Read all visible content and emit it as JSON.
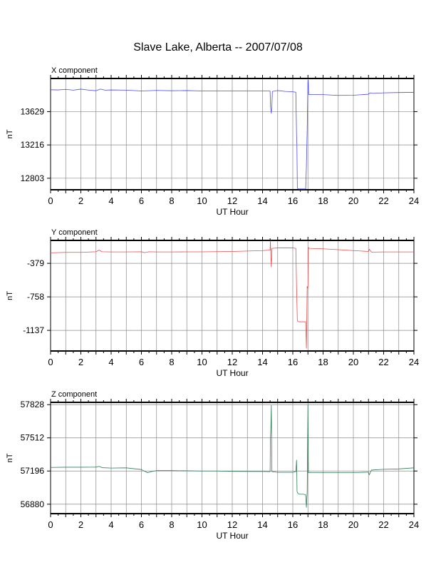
{
  "title": "Slave Lake, Alberta -- 2007/07/08",
  "colors": {
    "x": "#4a4aee",
    "y": "#ee4a4a",
    "z": "#2e7d55",
    "grid": "#8a8a8a",
    "axis": "#000000"
  },
  "chart_data": [
    {
      "type": "line",
      "panel_label": "X component",
      "xlabel": "UT Hour",
      "ylabel": "nT",
      "xlim": [
        0,
        24
      ],
      "ylim": [
        12660,
        14040
      ],
      "x_ticks": [
        0,
        2,
        4,
        6,
        8,
        10,
        12,
        14,
        16,
        18,
        20,
        22,
        24
      ],
      "y_ticks": [
        13629,
        13216,
        12803
      ],
      "grid": true,
      "series": [
        {
          "color": "#4a4aee",
          "x": [
            0,
            0.5,
            1,
            1.5,
            2,
            2.5,
            3,
            3.3,
            3.6,
            4,
            5,
            6,
            7,
            8,
            9,
            10,
            11,
            12,
            13,
            14,
            14.5,
            14.53,
            14.58,
            14.62,
            14.65,
            15,
            15.5,
            16,
            16.2,
            16.25,
            16.27,
            16.3,
            16.35,
            16.5,
            16.7,
            16.85,
            16.9,
            16.95,
            17.0,
            17.02,
            17.05,
            18,
            19,
            20,
            21,
            21.1,
            21.3,
            22,
            23,
            24
          ],
          "y": [
            13900,
            13898,
            13905,
            13895,
            13908,
            13896,
            13888,
            13908,
            13895,
            13898,
            13895,
            13885,
            13892,
            13888,
            13890,
            13885,
            13886,
            13886,
            13884,
            13884,
            13884,
            13690,
            13610,
            13720,
            13880,
            13890,
            13880,
            13875,
            13870,
            13320,
            13220,
            12680,
            12670,
            12670,
            12670,
            12670,
            12960,
            13400,
            14000,
            14020,
            13840,
            13840,
            13830,
            13832,
            13845,
            13862,
            13855,
            13862,
            13866,
            13868
          ]
        }
      ]
    },
    {
      "type": "line",
      "panel_label": "Y component",
      "xlabel": "UT Hour",
      "ylabel": "nT",
      "xlim": [
        0,
        24
      ],
      "ylim": [
        -1370,
        -120
      ],
      "x_ticks": [
        0,
        2,
        4,
        6,
        8,
        10,
        12,
        14,
        16,
        18,
        20,
        22,
        24
      ],
      "y_ticks": [
        -379,
        -758,
        -1137
      ],
      "grid": true,
      "series": [
        {
          "color": "#ee4a4a",
          "x": [
            0,
            1,
            2,
            3,
            3.2,
            3.4,
            4,
            5,
            6,
            6.2,
            6.5,
            7,
            8,
            9,
            10,
            11,
            12,
            13,
            14,
            14.5,
            14.52,
            14.55,
            14.58,
            14.62,
            15,
            16,
            16.2,
            16.25,
            16.3,
            16.4,
            16.7,
            16.85,
            16.9,
            16.95,
            17.0,
            17.03,
            17.1,
            18,
            19,
            20,
            21,
            21.05,
            21.2,
            22,
            23,
            24
          ],
          "y": [
            -260,
            -255,
            -255,
            -248,
            -230,
            -248,
            -250,
            -250,
            -248,
            -258,
            -248,
            -250,
            -250,
            -249,
            -249,
            -247,
            -245,
            -240,
            -235,
            -230,
            -125,
            -300,
            -420,
            -210,
            -205,
            -205,
            -210,
            -660,
            -1030,
            -1040,
            -1040,
            -1040,
            -1340,
            -640,
            -660,
            -200,
            -210,
            -215,
            -225,
            -235,
            -245,
            -220,
            -252,
            -250,
            -250,
            -250
          ]
        }
      ]
    },
    {
      "type": "line",
      "panel_label": "Z component",
      "xlabel": "UT Hour",
      "ylabel": "nT",
      "xlim": [
        0,
        24
      ],
      "ylim": [
        56790,
        57850
      ],
      "x_ticks": [
        0,
        2,
        4,
        6,
        8,
        10,
        12,
        14,
        16,
        18,
        20,
        22,
        24
      ],
      "y_ticks": [
        57828,
        57512,
        57196,
        56880
      ],
      "grid": true,
      "series": [
        {
          "color": "#2e7d55",
          "x": [
            0,
            1,
            2,
            3,
            3.2,
            3.4,
            4,
            5,
            6,
            6.4,
            6.7,
            7,
            8,
            9,
            10,
            11,
            12,
            13,
            14,
            14.5,
            14.52,
            14.55,
            14.58,
            14.62,
            15,
            16,
            16.2,
            16.25,
            16.28,
            16.35,
            16.5,
            16.7,
            16.85,
            16.9,
            16.95,
            17.0,
            17.03,
            17.1,
            18,
            19,
            20,
            21,
            21.05,
            21.2,
            22,
            23,
            24
          ],
          "y": [
            57230,
            57232,
            57232,
            57233,
            57240,
            57228,
            57224,
            57226,
            57210,
            57180,
            57192,
            57200,
            57200,
            57198,
            57196,
            57196,
            57193,
            57192,
            57192,
            57190,
            57500,
            57600,
            57820,
            57190,
            57183,
            57183,
            57190,
            57300,
            57000,
            56980,
            56975,
            56975,
            56970,
            56850,
            57000,
            57828,
            57180,
            57180,
            57180,
            57180,
            57180,
            57185,
            57160,
            57205,
            57212,
            57216,
            57226
          ]
        }
      ]
    }
  ]
}
